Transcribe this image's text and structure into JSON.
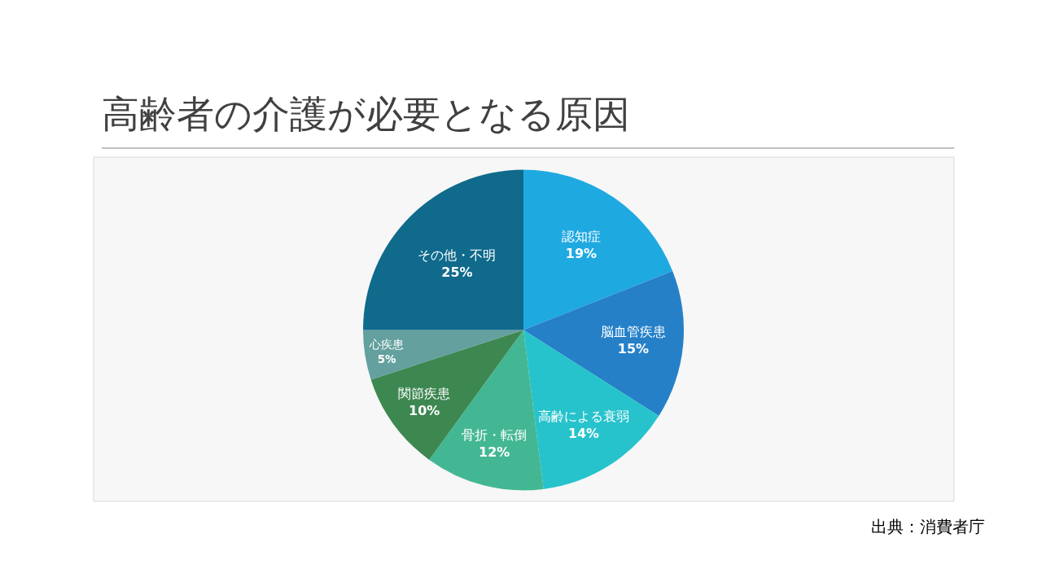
{
  "chart_data": {
    "type": "pie",
    "title": "高齢者の介護が必要となる原因",
    "categories": [
      "認知症",
      "脳血管疾患",
      "高齢による衰弱",
      "骨折・転倒",
      "関節疾患",
      "心疾患",
      "その他・不明"
    ],
    "values": [
      19,
      15,
      14,
      12,
      10,
      5,
      25
    ],
    "value_labels": [
      "19%",
      "15%",
      "14%",
      "12%",
      "10%",
      "5%",
      "25%"
    ],
    "colors": [
      "#1fa9e1",
      "#2580c8",
      "#27c3cc",
      "#43b793",
      "#3d8751",
      "#63a09e",
      "#0f6a8c"
    ],
    "annotations": [
      "出典：消費者庁"
    ],
    "legend": false
  }
}
